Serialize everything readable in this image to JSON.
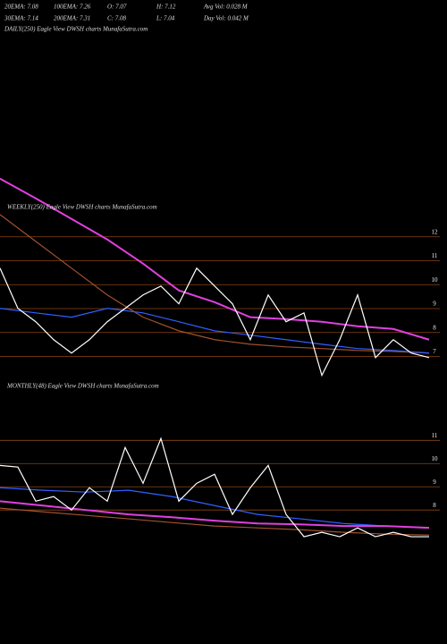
{
  "header": {
    "rows": [
      [
        "20EMA: 7.08",
        "100EMA: 7.26",
        "O: 7.07",
        "H: 7.12",
        "Avg Vol: 0.028 M"
      ],
      [
        "30EMA: 7.14",
        "200EMA: 7.31",
        "C: 7.08",
        "L: 7.04",
        "Day Vol: 0.042 M"
      ]
    ],
    "daily_label": "DAILY(250) Eagle  View  DWSH charts MunafaSutra.com"
  },
  "chart_data": [
    {
      "type": "line",
      "title": "WEEKLY(250) Eagle  View  DWSH charts MunafaSutra.com",
      "ylim": [
        4.7,
        13.3
      ],
      "yticks": [
        7,
        8,
        9,
        10,
        11,
        12
      ],
      "grid": true,
      "series": [
        {
          "color": "#a0522d",
          "values": [
            12.93,
            11.81,
            10.69,
            9.57,
            8.64,
            8.07,
            7.7,
            7.51,
            7.4,
            7.33,
            7.25,
            7.21,
            7.14
          ]
        },
        {
          "color": "#3060ff",
          "values": [
            9.01,
            8.82,
            8.64,
            9.01,
            8.82,
            8.45,
            8.07,
            7.89,
            7.7,
            7.51,
            7.33,
            7.25,
            7.14
          ]
        },
        {
          "color": "#e040e0",
          "values": [
            14.43,
            13.61,
            12.75,
            11.89,
            10.88,
            9.76,
            9.27,
            8.64,
            8.56,
            8.45,
            8.26,
            8.15,
            7.7
          ]
        },
        {
          "color": "#ffffff",
          "values": [
            10.69,
            9.01,
            8.45,
            7.7,
            7.14,
            7.7,
            8.45,
            9.01,
            9.57,
            9.94,
            9.2,
            10.69,
            9.94,
            9.2,
            7.7,
            9.57,
            8.45,
            8.82,
            6.21,
            7.7,
            9.57,
            6.95,
            7.7,
            7.14,
            6.95
          ]
        }
      ]
    },
    {
      "type": "line",
      "title": "MONTHLY(48) Eagle  View  DWSH charts MunafaSutra.com",
      "ylim": [
        3,
        13.4
      ],
      "yticks": [
        8,
        9,
        10,
        11
      ],
      "grid": true,
      "series": [
        {
          "color": "#a0522d",
          "values": [
            8.08,
            7.92,
            7.77,
            7.62,
            7.46,
            7.31,
            7.23,
            7.15,
            7.04,
            6.96,
            6.92
          ]
        },
        {
          "color": "#3060ff",
          "values": [
            8.96,
            8.85,
            8.77,
            8.85,
            8.58,
            8.19,
            7.81,
            7.62,
            7.42,
            7.31,
            7.23
          ]
        },
        {
          "color": "#e040e0",
          "values": [
            8.38,
            8.19,
            8.0,
            7.81,
            7.69,
            7.54,
            7.42,
            7.38,
            7.31,
            7.31,
            7.23
          ]
        },
        {
          "color": "#ffffff",
          "values": [
            9.92,
            9.85,
            8.38,
            8.58,
            8.0,
            8.96,
            8.38,
            10.69,
            9.15,
            11.08,
            8.38,
            9.15,
            9.54,
            7.81,
            8.96,
            9.92,
            7.81,
            6.85,
            7.04,
            6.85,
            7.23,
            6.85,
            7.04,
            6.85,
            6.85
          ]
        }
      ]
    }
  ]
}
